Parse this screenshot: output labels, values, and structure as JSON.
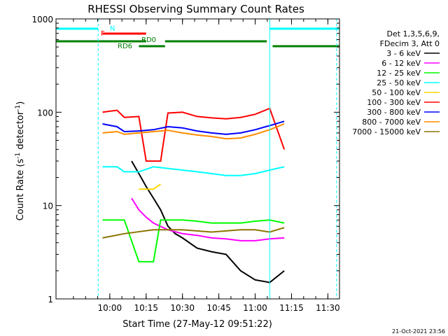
{
  "chart_data": {
    "type": "line",
    "title": "RHESSI Observing Summary Count Rates",
    "xlabel": "Start Time (27-May-12 09:51:22)",
    "ylabel_main": "Count Rate (s",
    "ylabel_sup1": "-1",
    "ylabel_mid": " detector",
    "ylabel_sup2": "-1",
    "ylabel_end": ")",
    "y_scale": "log",
    "ylim": [
      1,
      1000
    ],
    "xlim_minutes": [
      9.63,
      11.58
    ],
    "x_ticks": [
      {
        "label": "10:00",
        "value": 10.0
      },
      {
        "label": "10:15",
        "value": 10.25
      },
      {
        "label": "10:30",
        "value": 10.5
      },
      {
        "label": "10:45",
        "value": 10.75
      },
      {
        "label": "11:00",
        "value": 11.0
      },
      {
        "label": "11:15",
        "value": 11.25
      },
      {
        "label": "11:30",
        "value": 11.5
      }
    ],
    "y_ticks": [
      {
        "label": "1",
        "value": 1
      },
      {
        "label": "10",
        "value": 10
      },
      {
        "label": "100",
        "value": 100
      },
      {
        "label": "1000",
        "value": 1000
      }
    ],
    "legend_header": [
      "Det 1,3,5,6,9,",
      "FDecim 3, Att 0"
    ],
    "legend_placement": "right",
    "series": [
      {
        "name": "3 - 6 keV",
        "color": "#000000",
        "points": [
          [
            10.15,
            30
          ],
          [
            10.2,
            22
          ],
          [
            10.25,
            16
          ],
          [
            10.3,
            12
          ],
          [
            10.35,
            9
          ],
          [
            10.4,
            6
          ],
          [
            10.45,
            5
          ],
          [
            10.5,
            4.5
          ],
          [
            10.6,
            3.5
          ],
          [
            10.7,
            3.2
          ],
          [
            10.8,
            3
          ],
          [
            10.9,
            2
          ],
          [
            11.0,
            1.6
          ],
          [
            11.1,
            1.5
          ],
          [
            11.2,
            2
          ]
        ]
      },
      {
        "name": "6 - 12 keV",
        "color": "#ff00ff",
        "points": [
          [
            10.15,
            12
          ],
          [
            10.2,
            9
          ],
          [
            10.25,
            7.5
          ],
          [
            10.3,
            6.5
          ],
          [
            10.4,
            5.5
          ],
          [
            10.5,
            5
          ],
          [
            10.6,
            4.8
          ],
          [
            10.7,
            4.5
          ],
          [
            10.8,
            4.4
          ],
          [
            10.9,
            4.2
          ],
          [
            11.0,
            4.2
          ],
          [
            11.1,
            4.4
          ],
          [
            11.2,
            4.5
          ]
        ]
      },
      {
        "name": "12 - 25 keV",
        "color": "#00ff00",
        "points": [
          [
            9.95,
            7
          ],
          [
            10.1,
            7
          ],
          [
            10.2,
            2.5
          ],
          [
            10.3,
            2.5
          ],
          [
            10.35,
            7
          ],
          [
            10.5,
            7
          ],
          [
            10.6,
            6.8
          ],
          [
            10.7,
            6.5
          ],
          [
            10.8,
            6.5
          ],
          [
            10.9,
            6.5
          ],
          [
            11.0,
            6.8
          ],
          [
            11.1,
            7
          ],
          [
            11.2,
            6.5
          ]
        ]
      },
      {
        "name": "25 - 50 keV",
        "color": "#00ffff",
        "points": [
          [
            9.95,
            26
          ],
          [
            10.05,
            26
          ],
          [
            10.1,
            23
          ],
          [
            10.2,
            23
          ],
          [
            10.3,
            26
          ],
          [
            10.4,
            25
          ],
          [
            10.5,
            24
          ],
          [
            10.6,
            23
          ],
          [
            10.7,
            22
          ],
          [
            10.8,
            21
          ],
          [
            10.9,
            21
          ],
          [
            11.0,
            22
          ],
          [
            11.1,
            24
          ],
          [
            11.2,
            26
          ]
        ]
      },
      {
        "name": "50 - 100 keV",
        "color": "#ffd700",
        "points": [
          [
            10.2,
            15
          ],
          [
            10.3,
            15
          ],
          [
            10.35,
            17
          ]
        ]
      },
      {
        "name": "100 - 300 keV",
        "color": "#ff0000",
        "points": [
          [
            9.95,
            100
          ],
          [
            10.05,
            105
          ],
          [
            10.1,
            88
          ],
          [
            10.2,
            90
          ],
          [
            10.25,
            30
          ],
          [
            10.35,
            30
          ],
          [
            10.4,
            98
          ],
          [
            10.5,
            100
          ],
          [
            10.6,
            90
          ],
          [
            10.7,
            87
          ],
          [
            10.8,
            85
          ],
          [
            10.9,
            88
          ],
          [
            11.0,
            95
          ],
          [
            11.1,
            110
          ],
          [
            11.2,
            40
          ]
        ]
      },
      {
        "name": "300 - 800 keV",
        "color": "#0000ff",
        "points": [
          [
            9.95,
            75
          ],
          [
            10.05,
            70
          ],
          [
            10.1,
            62
          ],
          [
            10.2,
            63
          ],
          [
            10.3,
            65
          ],
          [
            10.4,
            70
          ],
          [
            10.5,
            68
          ],
          [
            10.6,
            63
          ],
          [
            10.7,
            60
          ],
          [
            10.8,
            58
          ],
          [
            10.9,
            60
          ],
          [
            11.0,
            65
          ],
          [
            11.1,
            72
          ],
          [
            11.2,
            80
          ]
        ]
      },
      {
        "name": "800 - 7000 keV",
        "color": "#ff8c00",
        "points": [
          [
            9.95,
            60
          ],
          [
            10.05,
            62
          ],
          [
            10.1,
            58
          ],
          [
            10.2,
            60
          ],
          [
            10.3,
            62
          ],
          [
            10.4,
            64
          ],
          [
            10.5,
            60
          ],
          [
            10.6,
            57
          ],
          [
            10.7,
            55
          ],
          [
            10.8,
            52
          ],
          [
            10.9,
            53
          ],
          [
            11.0,
            58
          ],
          [
            11.1,
            65
          ],
          [
            11.2,
            75
          ]
        ]
      },
      {
        "name": "7000 - 15000 keV",
        "color": "#8b7500",
        "points": [
          [
            9.95,
            4.5
          ],
          [
            10.1,
            5
          ],
          [
            10.3,
            5.5
          ],
          [
            10.5,
            5.5
          ],
          [
            10.7,
            5.2
          ],
          [
            10.9,
            5.5
          ],
          [
            11.0,
            5.5
          ],
          [
            11.1,
            5.2
          ],
          [
            11.2,
            5.8
          ]
        ]
      }
    ],
    "flags": [
      {
        "label": "N",
        "color": "#00ffff",
        "segments": [
          [
            9.63,
            9.92
          ],
          [
            11.1,
            11.58
          ]
        ]
      },
      {
        "label": "F",
        "color": "#ff0000",
        "segments": [
          [
            9.95,
            10.25
          ]
        ]
      },
      {
        "label": "RD0",
        "color": "#008000",
        "segments": [
          [
            9.63,
            10.25
          ],
          [
            10.38,
            11.08
          ]
        ]
      },
      {
        "label": "RD6",
        "color": "#008000",
        "segments": [
          [
            10.2,
            10.38
          ],
          [
            11.12,
            11.58
          ]
        ]
      }
    ],
    "vlines": [
      {
        "x": 9.92,
        "color": "#00ffff",
        "dashed": true
      },
      {
        "x": 11.1,
        "color": "#00ffff",
        "dashed": false
      },
      {
        "x": 11.56,
        "color": "#00ffff",
        "dashed": true
      }
    ]
  },
  "footer_timestamp": "21-Oct-2021 23:56"
}
